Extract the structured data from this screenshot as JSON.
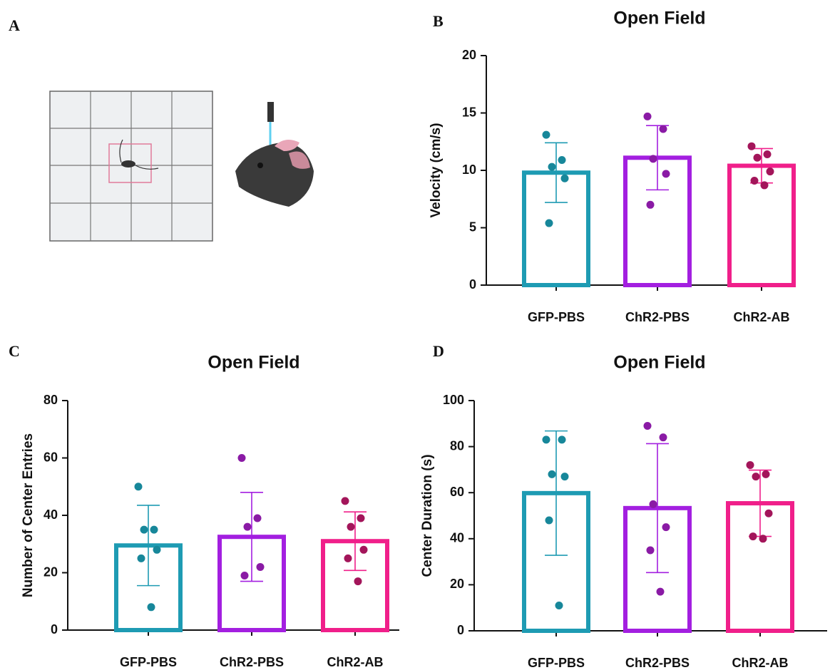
{
  "panel_labels": [
    "A",
    "B",
    "C",
    "D"
  ],
  "chart_data": [
    {
      "type": "bar",
      "title": "Open Field",
      "ylabel": "Velocity (cm/s)",
      "categories": [
        "GFP-PBS",
        "ChR2-PBS",
        "ChR2-AB"
      ],
      "values": [
        9.8,
        11.1,
        10.4
      ],
      "errors": [
        2.6,
        2.8,
        1.5
      ],
      "colors": [
        "#1e9bb3",
        "#a31fe0",
        "#f01f8a"
      ],
      "point_colors": [
        "#17879a",
        "#8a1aa5",
        "#a3155a"
      ],
      "points": [
        [
          13.1,
          10.9,
          10.3,
          9.3,
          5.4
        ],
        [
          14.7,
          13.6,
          11.0,
          9.7,
          7.0
        ],
        [
          12.1,
          11.4,
          11.1,
          9.9,
          9.1,
          8.7
        ]
      ],
      "ylim": [
        0,
        20
      ],
      "yticks": [
        0,
        5,
        10,
        15,
        20
      ]
    },
    {
      "type": "bar",
      "title": "Open Field",
      "ylabel": "Number of Center Entries",
      "categories": [
        "GFP-PBS",
        "ChR2-PBS",
        "ChR2-AB"
      ],
      "values": [
        29.5,
        32.5,
        31
      ],
      "errors": [
        14,
        15.5,
        10.2
      ],
      "colors": [
        "#1e9bb3",
        "#a31fe0",
        "#f01f8a"
      ],
      "point_colors": [
        "#17879a",
        "#8a1aa5",
        "#a3155a"
      ],
      "points": [
        [
          50,
          35,
          35,
          28,
          25,
          8
        ],
        [
          60,
          39,
          36,
          22,
          19
        ],
        [
          45,
          39,
          36,
          28,
          25,
          17
        ]
      ],
      "ylim": [
        0,
        80
      ],
      "yticks": [
        0,
        20,
        40,
        60,
        80
      ]
    },
    {
      "type": "bar",
      "title": "Open Field",
      "ylabel": "Center Duration (s)",
      "categories": [
        "GFP-PBS",
        "ChR2-PBS",
        "ChR2-AB"
      ],
      "values": [
        59.8,
        53.3,
        55.4
      ],
      "errors": [
        27,
        28,
        14.4
      ],
      "colors": [
        "#1e9bb3",
        "#a31fe0",
        "#f01f8a"
      ],
      "point_colors": [
        "#17879a",
        "#8a1aa5",
        "#a3155a"
      ],
      "points": [
        [
          83,
          83,
          68,
          67,
          48,
          11
        ],
        [
          89,
          84,
          55,
          45,
          35,
          17
        ],
        [
          72,
          68,
          67,
          51,
          41,
          40
        ]
      ],
      "ylim": [
        0,
        100
      ],
      "yticks": [
        0,
        20,
        40,
        60,
        80,
        100
      ]
    }
  ]
}
